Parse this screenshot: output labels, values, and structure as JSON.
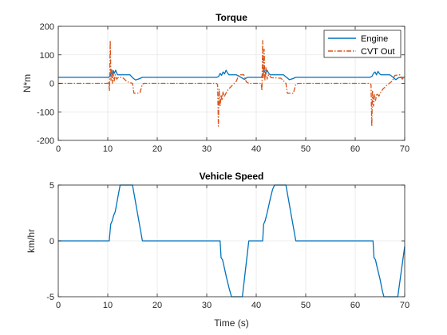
{
  "chart_data": [
    {
      "type": "line",
      "title": "Torque",
      "xlabel": "",
      "ylabel": "N*m",
      "xlim": [
        0,
        70
      ],
      "ylim": [
        -200,
        200
      ],
      "xticks": [
        0,
        10,
        20,
        30,
        40,
        50,
        60,
        70
      ],
      "yticks": [
        -200,
        -100,
        0,
        100,
        200
      ],
      "grid": true,
      "legend": "top-right",
      "series": [
        {
          "name": "Engine",
          "color": "#0072BD",
          "style": "solid",
          "points": [
            [
              0,
              21
            ],
            [
              10.2,
              21
            ],
            [
              10.5,
              25
            ],
            [
              10.7,
              40
            ],
            [
              10.9,
              30
            ],
            [
              11.1,
              45
            ],
            [
              11.3,
              35
            ],
            [
              11.6,
              46
            ],
            [
              11.8,
              36
            ],
            [
              12.0,
              30
            ],
            [
              13.0,
              30
            ],
            [
              14.5,
              30
            ],
            [
              15.0,
              20
            ],
            [
              15.6,
              12
            ],
            [
              16.2,
              15
            ],
            [
              17.0,
              21
            ],
            [
              32.0,
              21
            ],
            [
              32.4,
              24
            ],
            [
              32.7,
              35
            ],
            [
              33.0,
              28
            ],
            [
              33.3,
              40
            ],
            [
              33.6,
              33
            ],
            [
              33.9,
              46
            ],
            [
              34.2,
              36
            ],
            [
              34.5,
              30
            ],
            [
              36.0,
              30
            ],
            [
              37.0,
              20
            ],
            [
              37.6,
              14
            ],
            [
              38.2,
              21
            ],
            [
              41.0,
              21
            ],
            [
              41.3,
              28
            ],
            [
              41.6,
              45
            ],
            [
              41.9,
              36
            ],
            [
              42.2,
              46
            ],
            [
              42.5,
              36
            ],
            [
              42.8,
              30
            ],
            [
              45.5,
              30
            ],
            [
              46.2,
              20
            ],
            [
              46.7,
              13
            ],
            [
              47.3,
              16
            ],
            [
              48.0,
              21
            ],
            [
              63.0,
              21
            ],
            [
              63.4,
              25
            ],
            [
              63.7,
              35
            ],
            [
              64.0,
              40
            ],
            [
              64.3,
              30
            ],
            [
              64.6,
              42
            ],
            [
              64.9,
              34
            ],
            [
              65.2,
              30
            ],
            [
              67.0,
              30
            ],
            [
              67.6,
              22
            ],
            [
              68.2,
              13
            ],
            [
              68.8,
              20
            ],
            [
              69.5,
              21
            ],
            [
              70,
              21
            ]
          ]
        },
        {
          "name": "CVT Out",
          "color": "#D95319",
          "style": "dashdot",
          "points": [
            [
              0,
              0
            ],
            [
              10.0,
              0
            ],
            [
              10.2,
              5
            ],
            [
              10.35,
              -25
            ],
            [
              10.5,
              150
            ],
            [
              10.65,
              10
            ],
            [
              10.8,
              50
            ],
            [
              10.95,
              0
            ],
            [
              11.1,
              35
            ],
            [
              11.3,
              8
            ],
            [
              11.5,
              30
            ],
            [
              11.8,
              15
            ],
            [
              12.2,
              22
            ],
            [
              13.0,
              20
            ],
            [
              14.0,
              5
            ],
            [
              15.0,
              0
            ],
            [
              15.3,
              -35
            ],
            [
              16.0,
              -35
            ],
            [
              16.5,
              -33
            ],
            [
              17.0,
              -3
            ],
            [
              17.3,
              0
            ],
            [
              32.0,
              0
            ],
            [
              32.2,
              -5
            ],
            [
              32.35,
              -150
            ],
            [
              32.5,
              -20
            ],
            [
              32.7,
              -80
            ],
            [
              32.9,
              -40
            ],
            [
              33.1,
              -60
            ],
            [
              33.3,
              -30
            ],
            [
              33.6,
              -45
            ],
            [
              34.0,
              -30
            ],
            [
              34.4,
              -20
            ],
            [
              35.0,
              -10
            ],
            [
              36.0,
              8
            ],
            [
              36.5,
              30
            ],
            [
              37.5,
              30
            ],
            [
              38.0,
              5
            ],
            [
              38.5,
              0
            ],
            [
              41.0,
              0
            ],
            [
              41.15,
              -25
            ],
            [
              41.3,
              150
            ],
            [
              41.45,
              20
            ],
            [
              41.6,
              120
            ],
            [
              41.75,
              10
            ],
            [
              41.95,
              55
            ],
            [
              42.2,
              15
            ],
            [
              42.5,
              30
            ],
            [
              43.0,
              20
            ],
            [
              45.0,
              18
            ],
            [
              46.0,
              0
            ],
            [
              46.3,
              -35
            ],
            [
              47.5,
              -35
            ],
            [
              48.0,
              -3
            ],
            [
              48.5,
              0
            ],
            [
              63.0,
              0
            ],
            [
              63.2,
              -5
            ],
            [
              63.35,
              -150
            ],
            [
              63.5,
              -25
            ],
            [
              63.7,
              -80
            ],
            [
              63.9,
              -40
            ],
            [
              64.1,
              -60
            ],
            [
              64.4,
              -35
            ],
            [
              64.8,
              -45
            ],
            [
              65.2,
              -30
            ],
            [
              65.6,
              -20
            ],
            [
              66.5,
              -5
            ],
            [
              67.5,
              8
            ],
            [
              68.0,
              28
            ],
            [
              69.0,
              30
            ],
            [
              69.5,
              15
            ],
            [
              70,
              25
            ]
          ]
        }
      ]
    },
    {
      "type": "line",
      "title": "Vehicle Speed",
      "xlabel": "Time (s)",
      "ylabel": "km/hr",
      "xlim": [
        0,
        70
      ],
      "ylim": [
        -5,
        5
      ],
      "xticks": [
        0,
        10,
        20,
        30,
        40,
        50,
        60,
        70
      ],
      "yticks": [
        -5,
        0,
        5
      ],
      "grid": true,
      "series": [
        {
          "color": "#0072BD",
          "style": "solid",
          "points": [
            [
              0,
              0
            ],
            [
              10.3,
              0
            ],
            [
              10.6,
              1.5
            ],
            [
              10.9,
              1.8
            ],
            [
              11.2,
              2.3
            ],
            [
              11.5,
              2.6
            ],
            [
              12.0,
              3.8
            ],
            [
              12.5,
              5
            ],
            [
              15.0,
              5
            ],
            [
              17.0,
              0
            ],
            [
              32.7,
              0
            ],
            [
              32.9,
              -1.5
            ],
            [
              33.2,
              -1.7
            ],
            [
              33.5,
              -2.3
            ],
            [
              34.0,
              -3.3
            ],
            [
              34.5,
              -4.2
            ],
            [
              35.0,
              -5
            ],
            [
              37.2,
              -5
            ],
            [
              38.5,
              0
            ],
            [
              41.3,
              0
            ],
            [
              41.5,
              1.5
            ],
            [
              41.8,
              1.8
            ],
            [
              42.2,
              2.5
            ],
            [
              42.8,
              3.7
            ],
            [
              43.3,
              4.6
            ],
            [
              43.7,
              5
            ],
            [
              46.0,
              5
            ],
            [
              48.0,
              0
            ],
            [
              63.6,
              0
            ],
            [
              63.8,
              -1.5
            ],
            [
              64.1,
              -1.7
            ],
            [
              64.4,
              -2.3
            ],
            [
              65.0,
              -3.4
            ],
            [
              65.5,
              -4.5
            ],
            [
              65.8,
              -5
            ],
            [
              68.6,
              -5
            ],
            [
              70,
              -0.5
            ]
          ]
        }
      ]
    }
  ]
}
